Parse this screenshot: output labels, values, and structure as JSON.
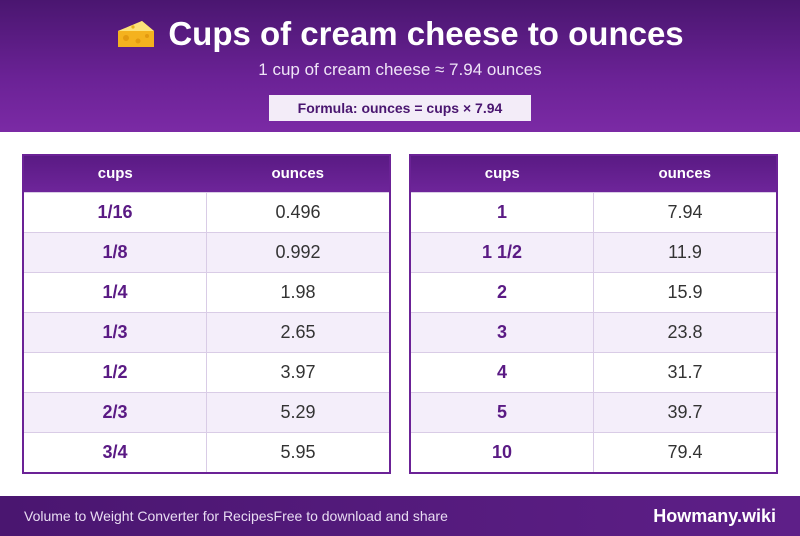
{
  "header": {
    "title": "Cups of cream cheese to ounces",
    "subtitle": "1 cup of cream cheese ≈ 7.94 ounces",
    "formula": "Formula: ounces = cups × 7.94"
  },
  "tables": [
    {
      "col_cups": "cups",
      "col_ounces": "ounces",
      "rows": [
        {
          "cups": "1/16",
          "ounces": "0.496"
        },
        {
          "cups": "1/8",
          "ounces": "0.992"
        },
        {
          "cups": "1/4",
          "ounces": "1.98"
        },
        {
          "cups": "1/3",
          "ounces": "2.65"
        },
        {
          "cups": "1/2",
          "ounces": "3.97"
        },
        {
          "cups": "2/3",
          "ounces": "5.29"
        },
        {
          "cups": "3/4",
          "ounces": "5.95"
        }
      ]
    },
    {
      "col_cups": "cups",
      "col_ounces": "ounces",
      "rows": [
        {
          "cups": "1",
          "ounces": "7.94"
        },
        {
          "cups": "1 1/2",
          "ounces": "11.9"
        },
        {
          "cups": "2",
          "ounces": "15.9"
        },
        {
          "cups": "3",
          "ounces": "23.8"
        },
        {
          "cups": "4",
          "ounces": "31.7"
        },
        {
          "cups": "5",
          "ounces": "39.7"
        },
        {
          "cups": "10",
          "ounces": "79.4"
        }
      ]
    }
  ],
  "footer": {
    "left_text": "Volume to Weight Converter for Recipes",
    "left_text_2": "Free to download and share",
    "brand": "Howmany.wiki"
  },
  "icons": {
    "title_icon": "cheese-icon"
  },
  "colors": {
    "brand_purple": "#6b2296",
    "dark_purple": "#4a1670"
  }
}
